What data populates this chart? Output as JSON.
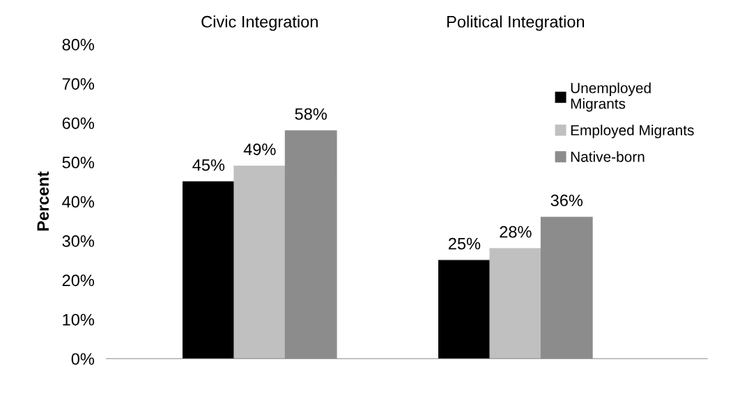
{
  "chart_data": {
    "type": "bar",
    "ylabel": "Percent",
    "categories": [
      "Civic Integration",
      "Political Integration"
    ],
    "series": [
      {
        "name": "Unemployed\nMigrants",
        "color": "#000000",
        "values": [
          45,
          25
        ],
        "value_labels": [
          "45%",
          "25%"
        ]
      },
      {
        "name": "Employed Migrants",
        "color": "#c0c0c0",
        "values": [
          49,
          28
        ],
        "value_labels": [
          "49%",
          "28%"
        ]
      },
      {
        "name": "Native-born",
        "color": "#8c8c8c",
        "values": [
          58,
          36
        ],
        "value_labels": [
          "58%",
          "36%"
        ]
      }
    ],
    "ylim": [
      0,
      80
    ],
    "yticks": [
      {
        "value": 0,
        "label": "0%"
      },
      {
        "value": 10,
        "label": "10%"
      },
      {
        "value": 20,
        "label": "20%"
      },
      {
        "value": 30,
        "label": "30%"
      },
      {
        "value": 40,
        "label": "40%"
      },
      {
        "value": 50,
        "label": "50%"
      },
      {
        "value": 60,
        "label": "60%"
      },
      {
        "value": 70,
        "label": "70%"
      },
      {
        "value": 80,
        "label": "80%"
      }
    ],
    "grid": false,
    "legend": "top right"
  }
}
